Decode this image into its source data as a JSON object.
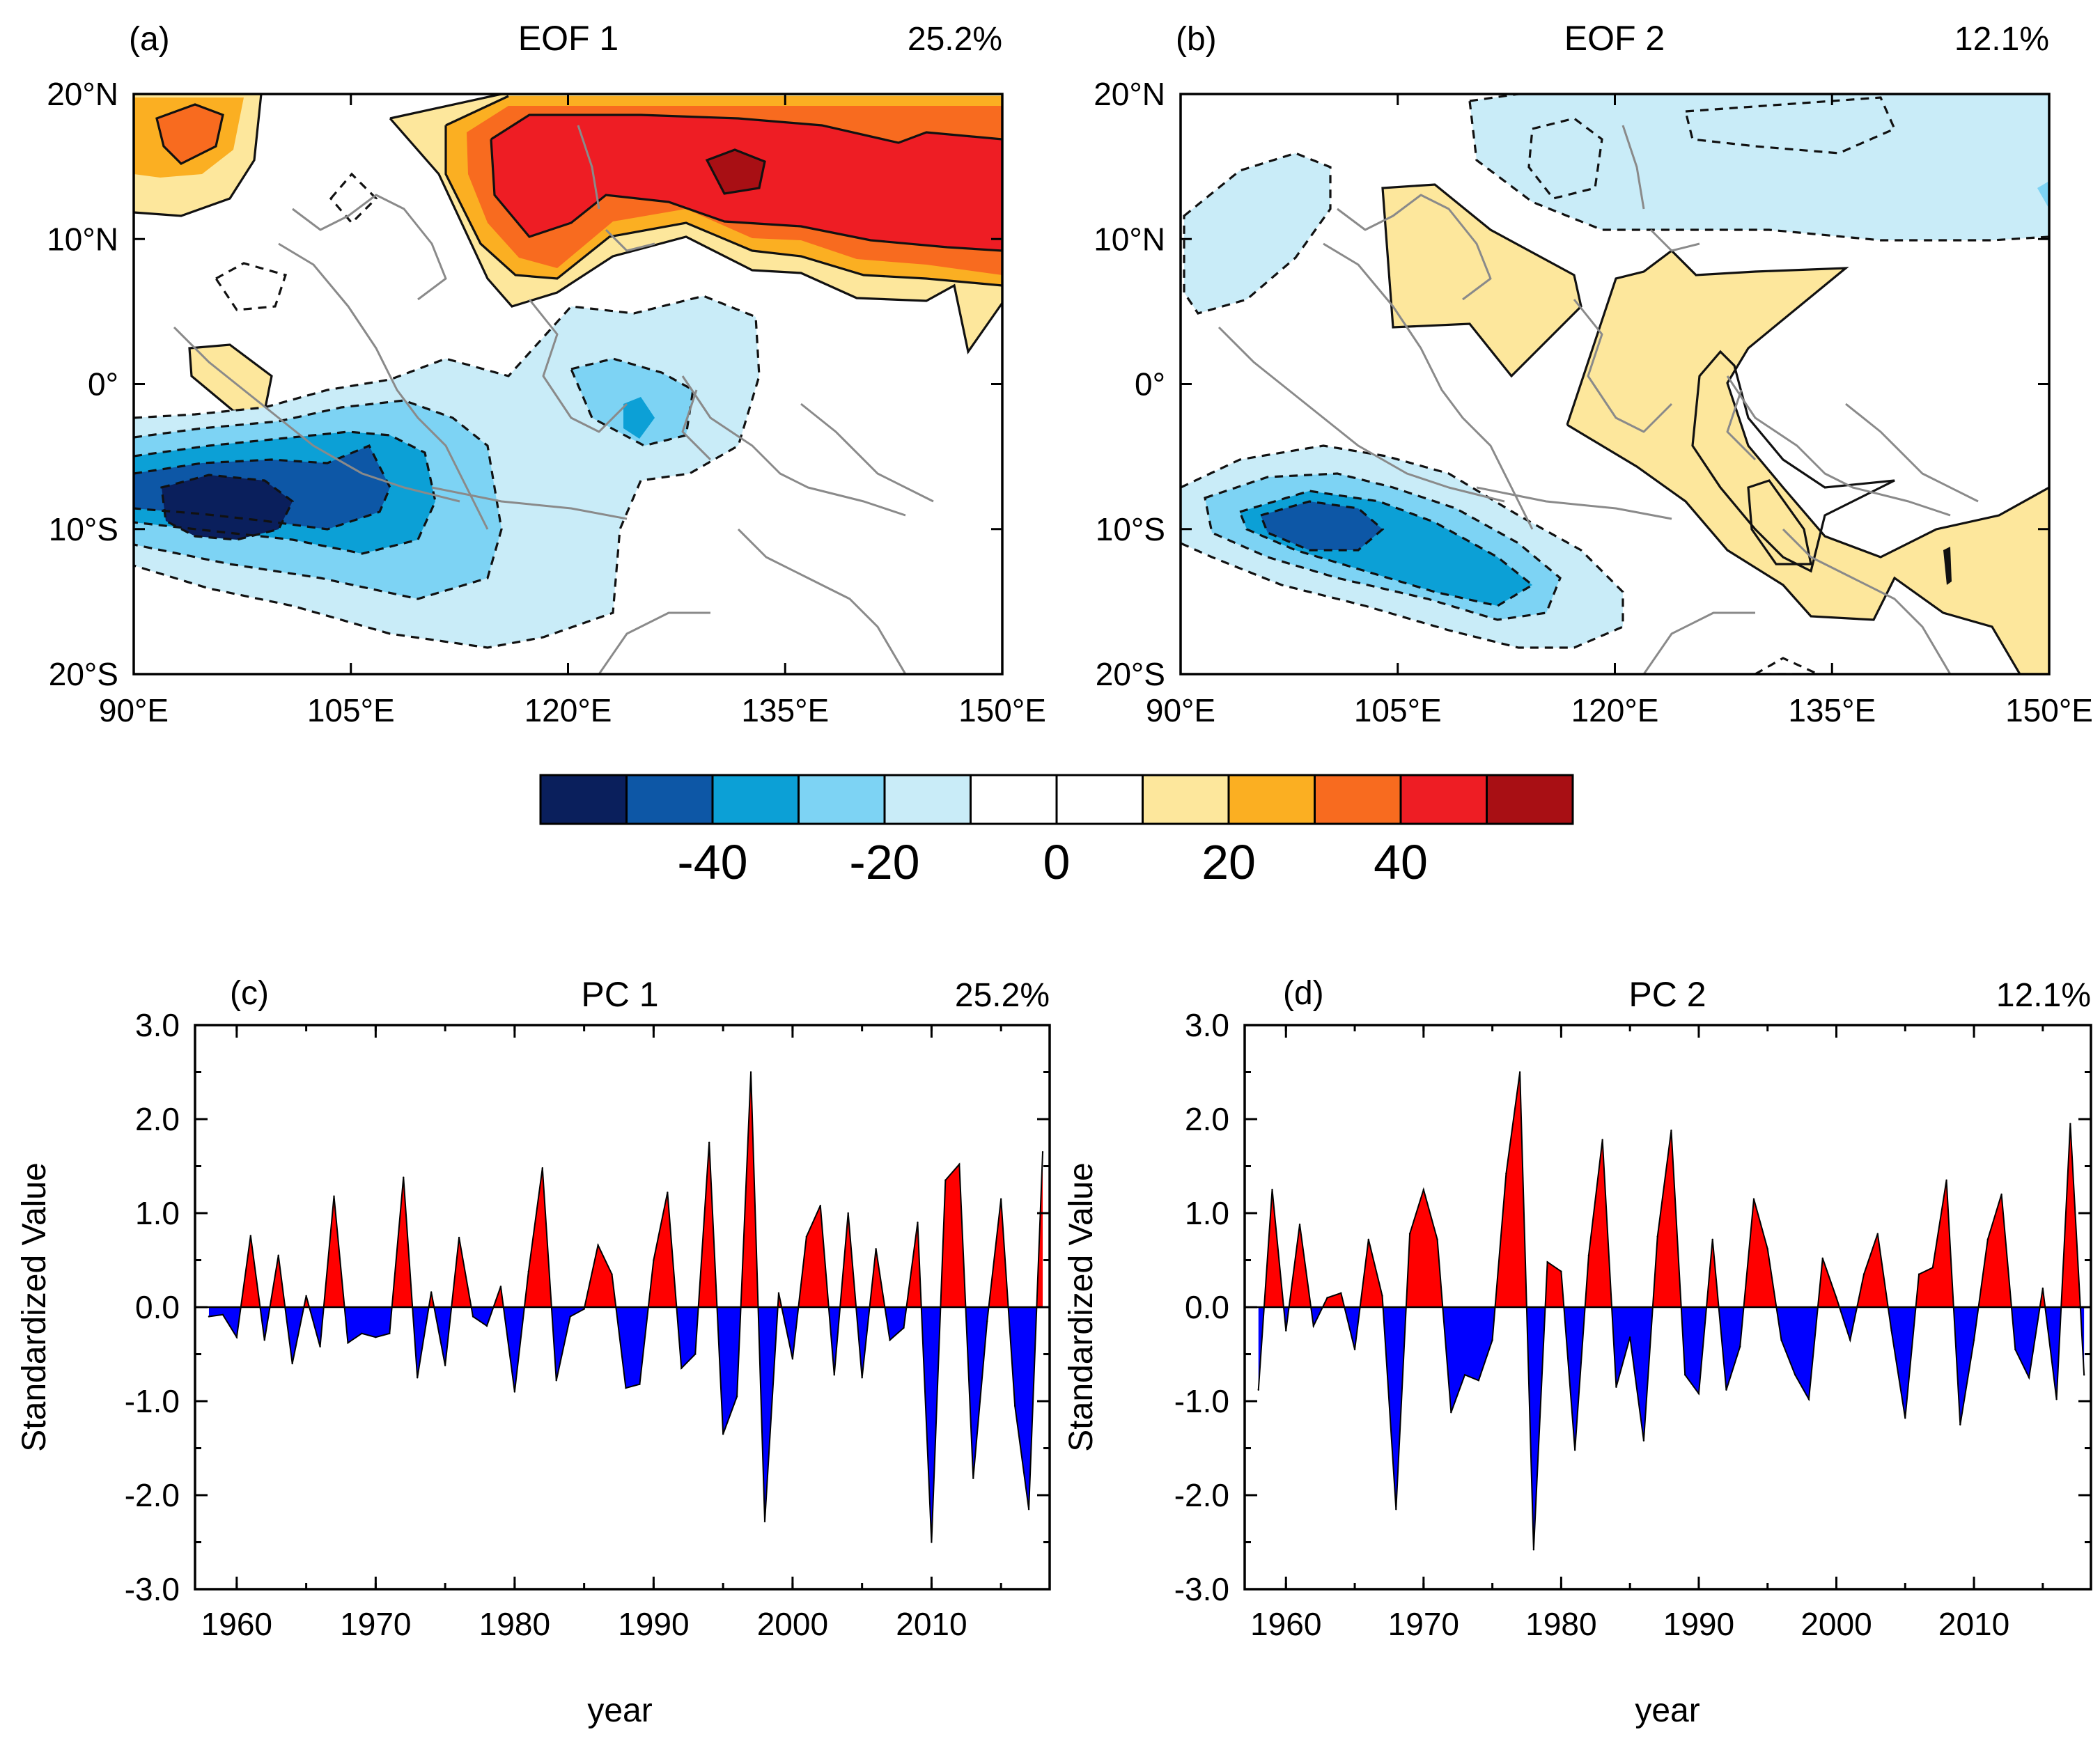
{
  "colors": {
    "positive_fill": "#ff0000",
    "negative_fill": "#0000ff",
    "colorbar": [
      "#0a1f5c",
      "#0d57a6",
      "#0ca0d6",
      "#7dd3f4",
      "#c9ecf8",
      "#ffffff",
      "#ffffff",
      "#fde79c",
      "#fbaf22",
      "#f86b1f",
      "#ee1d24",
      "#a80f14"
    ]
  },
  "chart_data": [
    {
      "id": "a",
      "type": "map",
      "panel_label": "(a)",
      "title": "EOF 1",
      "variance": "25.2%",
      "x_ticks": [
        "90°E",
        "105°E",
        "120°E",
        "135°E",
        "150°E"
      ],
      "y_ticks": [
        "20°N",
        "10°N",
        "0°",
        "10°S",
        "20°S"
      ],
      "lon_range": [
        90,
        150
      ],
      "lat_range": [
        -20,
        20
      ]
    },
    {
      "id": "b",
      "type": "map",
      "panel_label": "(b)",
      "title": "EOF 2",
      "variance": "12.1%",
      "x_ticks": [
        "90°E",
        "105°E",
        "120°E",
        "135°E",
        "150°E"
      ],
      "y_ticks": [
        "20°N",
        "10°N",
        "0°",
        "10°S",
        "20°S"
      ],
      "lon_range": [
        90,
        150
      ],
      "lat_range": [
        -20,
        20
      ]
    },
    {
      "id": "colorbar",
      "type": "colorbar",
      "labels": [
        "-40",
        "-20",
        "0",
        "20",
        "40"
      ]
    },
    {
      "id": "c",
      "type": "area",
      "panel_label": "(c)",
      "title": "PC 1",
      "variance": "25.2%",
      "xlabel": "year",
      "ylabel": "Standardized Value",
      "x_ticks": [
        "1960",
        "1970",
        "1980",
        "1990",
        "2000",
        "2010"
      ],
      "y_ticks": [
        "3.0",
        "2.0",
        "1.0",
        "0.0",
        "-1.0",
        "-2.0",
        "-3.0"
      ],
      "xlim": [
        1957,
        2018.5
      ],
      "ylim": [
        -3,
        3
      ],
      "x": [
        1958,
        1959,
        1960,
        1961,
        1962,
        1963,
        1964,
        1965,
        1966,
        1967,
        1968,
        1969,
        1970,
        1971,
        1972,
        1973,
        1974,
        1975,
        1976,
        1977,
        1978,
        1979,
        1980,
        1981,
        1982,
        1983,
        1984,
        1985,
        1986,
        1987,
        1988,
        1989,
        1990,
        1991,
        1992,
        1993,
        1994,
        1995,
        1996,
        1997,
        1998,
        1999,
        2000,
        2001,
        2002,
        2003,
        2004,
        2005,
        2006,
        2007,
        2008,
        2009,
        2010,
        2011,
        2012,
        2013,
        2014,
        2015,
        2016,
        2017,
        2018
      ],
      "values": [
        -0.1,
        -0.08,
        -0.32,
        0.76,
        -0.35,
        0.55,
        -0.6,
        0.12,
        -0.42,
        1.18,
        -0.38,
        -0.28,
        -0.32,
        -0.28,
        1.38,
        -0.75,
        0.16,
        -0.62,
        0.74,
        -0.1,
        -0.2,
        0.22,
        -0.9,
        0.38,
        1.48,
        -0.78,
        -0.1,
        -0.02,
        0.66,
        0.35,
        -0.86,
        -0.82,
        0.5,
        1.22,
        -0.65,
        -0.5,
        1.75,
        -1.35,
        -0.95,
        2.5,
        -2.28,
        0.15,
        -0.55,
        0.75,
        1.08,
        -0.72,
        1.0,
        -0.75,
        0.62,
        -0.35,
        -0.22,
        0.9,
        -2.5,
        1.35,
        1.52,
        -1.82,
        -0.15,
        1.15,
        -1.05,
        -2.15,
        1.65
      ]
    },
    {
      "id": "d",
      "type": "area",
      "panel_label": "(d)",
      "title": "PC 2",
      "variance": "12.1%",
      "xlabel": "year",
      "ylabel": "Standardized Value",
      "x_ticks": [
        "1960",
        "1970",
        "1980",
        "1990",
        "2000",
        "2010"
      ],
      "y_ticks": [
        "3.0",
        "2.0",
        "1.0",
        "0.0",
        "-1.0",
        "-2.0",
        "-3.0"
      ],
      "xlim": [
        1957,
        2018.5
      ],
      "ylim": [
        -3,
        3
      ],
      "x": [
        1958,
        1959,
        1960,
        1961,
        1962,
        1963,
        1964,
        1965,
        1966,
        1967,
        1968,
        1969,
        1970,
        1971,
        1972,
        1973,
        1974,
        1975,
        1976,
        1977,
        1978,
        1979,
        1980,
        1981,
        1982,
        1983,
        1984,
        1985,
        1986,
        1987,
        1988,
        1989,
        1990,
        1991,
        1992,
        1993,
        1994,
        1995,
        1996,
        1997,
        1998,
        1999,
        2000,
        2001,
        2002,
        2003,
        2004,
        2005,
        2006,
        2007,
        2008,
        2009,
        2010,
        2011,
        2012,
        2013,
        2014,
        2015,
        2016,
        2017,
        2018
      ],
      "values": [
        -0.88,
        1.25,
        -0.25,
        0.88,
        -0.2,
        0.1,
        0.15,
        -0.45,
        0.72,
        0.12,
        -2.15,
        0.78,
        1.25,
        0.72,
        -1.12,
        -0.72,
        -0.78,
        -0.35,
        1.42,
        2.5,
        -2.58,
        0.48,
        0.38,
        -1.52,
        0.55,
        1.78,
        -0.85,
        -0.32,
        -1.42,
        0.75,
        1.88,
        -0.72,
        -0.92,
        0.72,
        -0.88,
        -0.42,
        1.15,
        0.62,
        -0.35,
        -0.72,
        -0.98,
        0.52,
        0.1,
        -0.35,
        0.35,
        0.78,
        -0.25,
        -1.18,
        0.35,
        0.42,
        1.35,
        -1.25,
        -0.35,
        0.72,
        1.2,
        -0.45,
        -0.75,
        0.2,
        -0.98,
        1.95,
        -0.72
      ]
    }
  ]
}
